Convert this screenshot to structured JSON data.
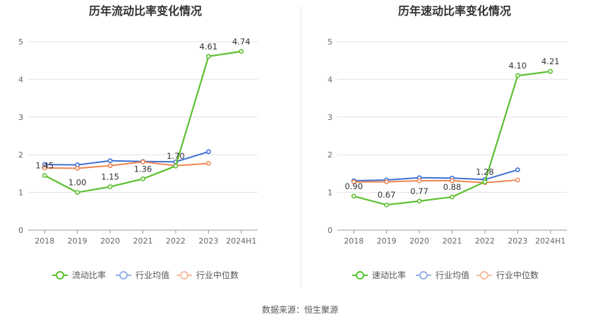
{
  "chart_data": [
    {
      "type": "line",
      "title": "历年流动比率变化情况",
      "categories": [
        "2018",
        "2019",
        "2020",
        "2021",
        "2022",
        "2023",
        "2024H1"
      ],
      "ylim": [
        0,
        5
      ],
      "yticks": [
        "0",
        "1",
        "2",
        "3",
        "4",
        "5"
      ],
      "grid": true,
      "legend_position": "bottom",
      "series": [
        {
          "name": "流动比率",
          "color": "#5cc02f",
          "values": [
            1.45,
            1.0,
            1.15,
            1.36,
            1.7,
            4.61,
            4.74
          ],
          "labels": [
            "1.45",
            "1.00",
            "1.15",
            "1.36",
            "1.70",
            "4.61",
            "4.74"
          ]
        },
        {
          "name": "行业均值",
          "color": "#3f6fd6",
          "values": [
            1.74,
            1.73,
            1.84,
            1.82,
            1.81,
            2.08,
            null
          ]
        },
        {
          "name": "行业中位数",
          "color": "#ef8552",
          "values": [
            1.65,
            1.64,
            1.71,
            1.81,
            1.71,
            1.77,
            null
          ]
        }
      ]
    },
    {
      "type": "line",
      "title": "历年速动比率变化情况",
      "categories": [
        "2018",
        "2019",
        "2020",
        "2021",
        "2022",
        "2023",
        "2024H1"
      ],
      "ylim": [
        0,
        5
      ],
      "yticks": [
        "0",
        "1",
        "2",
        "3",
        "4",
        "5"
      ],
      "grid": true,
      "legend_position": "bottom",
      "series": [
        {
          "name": "速动比率",
          "color": "#5cc02f",
          "values": [
            0.9,
            0.67,
            0.77,
            0.88,
            1.28,
            4.1,
            4.21
          ],
          "labels": [
            "0.90",
            "0.67",
            "0.77",
            "0.88",
            "1.28",
            "4.10",
            "4.21"
          ]
        },
        {
          "name": "行业均值",
          "color": "#3f6fd6",
          "values": [
            1.31,
            1.33,
            1.39,
            1.38,
            1.34,
            1.6,
            null
          ]
        },
        {
          "name": "行业中位数",
          "color": "#ef8552",
          "values": [
            1.28,
            1.28,
            1.31,
            1.31,
            1.26,
            1.33,
            null
          ]
        }
      ]
    }
  ],
  "footer": {
    "source": "数据来源：恒生聚源"
  }
}
